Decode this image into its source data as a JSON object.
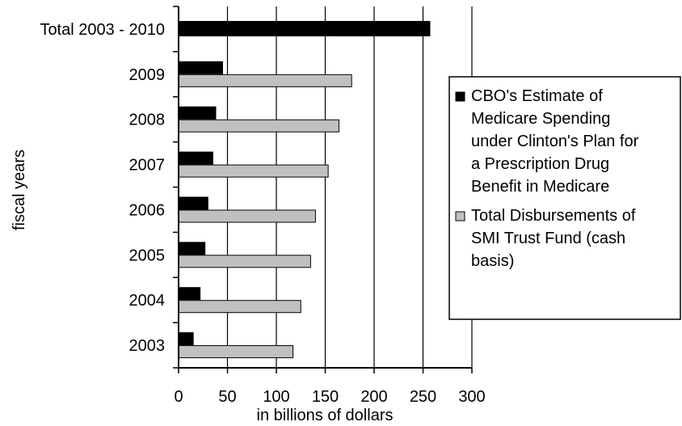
{
  "chart_data": {
    "type": "bar",
    "orientation": "horizontal",
    "categories": [
      "2003",
      "2004",
      "2005",
      "2006",
      "2007",
      "2008",
      "2009",
      "Total 2003 - 2010"
    ],
    "series": [
      {
        "name_lines": [
          "CBO's Estimate of",
          "Medicare Spending",
          "under Clinton's Plan for",
          "a Prescription Drug",
          "Benefit in Medicare"
        ],
        "color": "#000000",
        "values": [
          15,
          22,
          27,
          30,
          35,
          38,
          45,
          257
        ]
      },
      {
        "name_lines": [
          "Total Disbursements of",
          "SMI Trust Fund (cash",
          "basis)"
        ],
        "color": "#c0c0c0",
        "values": [
          117,
          125,
          135,
          140,
          153,
          164,
          177,
          null
        ]
      }
    ],
    "xlabel": "in billions of dollars",
    "ylabel": "fiscal years",
    "xlim": [
      0,
      300
    ],
    "xticks": [
      "0",
      "50",
      "100",
      "150",
      "200",
      "250",
      "300"
    ],
    "grid": "vertical",
    "legend": "right"
  }
}
